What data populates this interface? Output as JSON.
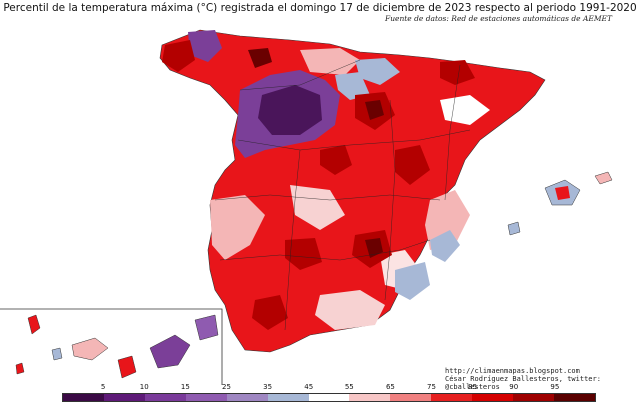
{
  "title": "Percentil de la temperatura máxima (°C) registrada el domingo 17 de diciembre de 2023 respecto al periodo 1991-2020",
  "source": "Fuente de datos: Red de estaciones automáticas de AEMET",
  "credit": {
    "url": "http://climaenmapas.blogspot.com",
    "author": "César Rodríguez Ballesteros, twitter: @cballesteros"
  },
  "legend": {
    "labels": [
      "5",
      "10",
      "15",
      "25",
      "35",
      "45",
      "55",
      "65",
      "75",
      "85",
      "90",
      "95"
    ],
    "colors": [
      "#3b0a45",
      "#5e1a78",
      "#7a3a9a",
      "#8f5bb0",
      "#9f87c2",
      "#a7b8d6",
      "#ffffff",
      "#f7c6c6",
      "#f08080",
      "#e62020",
      "#d40000",
      "#9e0000",
      "#5a0000"
    ]
  },
  "palette": {
    "purple_dark": "#4a155a",
    "purple": "#7b3f98",
    "lavender": "#a7b8d6",
    "pink": "#f4b6b6",
    "red": "#e8151a",
    "darkred": "#b30000",
    "maroon": "#6a0000"
  }
}
